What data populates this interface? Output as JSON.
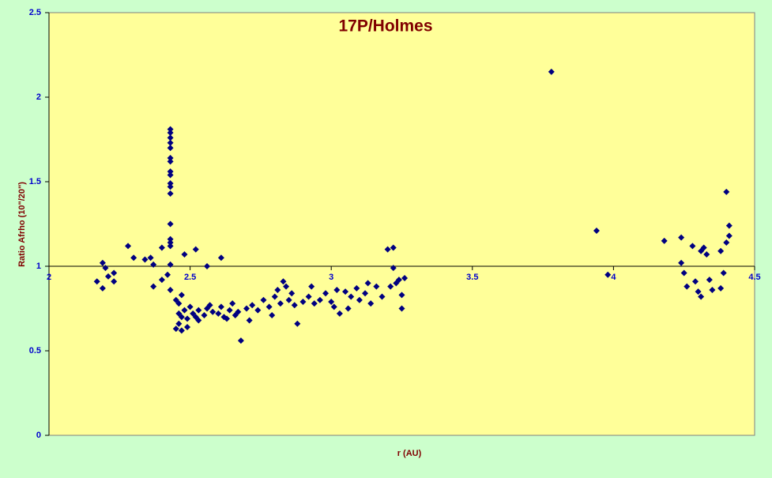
{
  "chart_data": {
    "type": "scatter",
    "title": "17P/Holmes",
    "xlabel": "r (AU)",
    "ylabel": "Ratio Afrho  (10\"/20\")",
    "xlim": [
      2,
      4.5
    ],
    "xticks": [
      2,
      2.5,
      3,
      3.5,
      4,
      4.5
    ],
    "ylim": [
      0,
      2.5
    ],
    "yticks": [
      0,
      0.5,
      1,
      1.5,
      2,
      2.5
    ],
    "x_axis_at": 1,
    "marker_color": "#000080",
    "title_color": "#800000",
    "tick_label_color": "#0000cc",
    "series": [
      {
        "name": "Ratio Afrho",
        "color": "#000080",
        "x": [
          3.78,
          3.94,
          3.98,
          4.18,
          4.24,
          4.24,
          4.25,
          4.26,
          4.28,
          4.29,
          4.3,
          4.31,
          4.31,
          4.32,
          4.33,
          4.34,
          4.35,
          4.38,
          4.38,
          4.39,
          4.4,
          4.4,
          4.41,
          4.41,
          2.17,
          2.19,
          2.19,
          2.2,
          2.21,
          2.23,
          2.23,
          2.28,
          2.3,
          2.34,
          2.36,
          2.37,
          2.37,
          2.4,
          2.4,
          2.42,
          2.43,
          2.43,
          2.43,
          2.43,
          2.43,
          2.43,
          2.43,
          2.43,
          2.43,
          2.43,
          2.43,
          2.43,
          2.43,
          2.43,
          2.43,
          2.43,
          2.43,
          2.43,
          2.48,
          2.52,
          2.56,
          2.61,
          2.45,
          2.46,
          2.46,
          2.46,
          2.47,
          2.48,
          2.49,
          2.5,
          2.51,
          2.52,
          2.53,
          2.55,
          2.56,
          2.58,
          2.6,
          2.61,
          2.62,
          2.64,
          2.65,
          2.67,
          2.68,
          2.7,
          2.72,
          2.74,
          2.76,
          2.78,
          2.8,
          2.81,
          2.82,
          2.84,
          2.85,
          2.87,
          2.88,
          2.9,
          2.92,
          2.94,
          2.96,
          2.98,
          3.0,
          3.02,
          3.03,
          3.05,
          3.07,
          3.09,
          3.1,
          3.12,
          3.14,
          3.16,
          3.18,
          3.2,
          3.21,
          3.22,
          3.22,
          3.23,
          3.24,
          3.25,
          3.25,
          3.26,
          2.47,
          2.49,
          2.45,
          2.47,
          2.53,
          2.57,
          2.63,
          2.66,
          2.71,
          2.79,
          2.83,
          2.86,
          2.93,
          3.01,
          3.06,
          3.13
        ],
        "values": [
          2.15,
          1.21,
          0.95,
          1.15,
          1.17,
          1.02,
          0.96,
          0.88,
          1.12,
          0.91,
          0.85,
          1.09,
          0.82,
          1.11,
          1.07,
          0.92,
          0.86,
          1.09,
          0.87,
          0.96,
          1.44,
          1.14,
          1.18,
          1.24,
          0.91,
          1.02,
          0.87,
          0.99,
          0.94,
          0.96,
          0.91,
          1.12,
          1.05,
          1.04,
          1.05,
          1.01,
          0.88,
          1.11,
          0.92,
          0.95,
          1.81,
          1.79,
          1.76,
          1.73,
          1.7,
          1.64,
          1.62,
          1.56,
          1.54,
          1.49,
          1.47,
          1.43,
          1.25,
          1.16,
          1.14,
          1.12,
          1.01,
          0.86,
          1.07,
          1.1,
          1.0,
          1.05,
          0.63,
          0.66,
          0.72,
          0.78,
          0.7,
          0.74,
          0.69,
          0.76,
          0.72,
          0.7,
          0.74,
          0.71,
          0.75,
          0.73,
          0.72,
          0.76,
          0.7,
          0.74,
          0.78,
          0.73,
          0.56,
          0.75,
          0.77,
          0.74,
          0.8,
          0.76,
          0.82,
          0.86,
          0.78,
          0.88,
          0.8,
          0.77,
          0.66,
          0.79,
          0.82,
          0.78,
          0.8,
          0.84,
          0.79,
          0.86,
          0.72,
          0.85,
          0.82,
          0.87,
          0.8,
          0.84,
          0.78,
          0.88,
          0.82,
          1.1,
          0.88,
          0.99,
          1.11,
          0.9,
          0.92,
          0.75,
          0.83,
          0.93,
          0.62,
          0.64,
          0.8,
          0.83,
          0.68,
          0.77,
          0.69,
          0.71,
          0.68,
          0.71,
          0.91,
          0.84,
          0.88,
          0.76,
          0.75,
          0.9
        ]
      }
    ]
  }
}
